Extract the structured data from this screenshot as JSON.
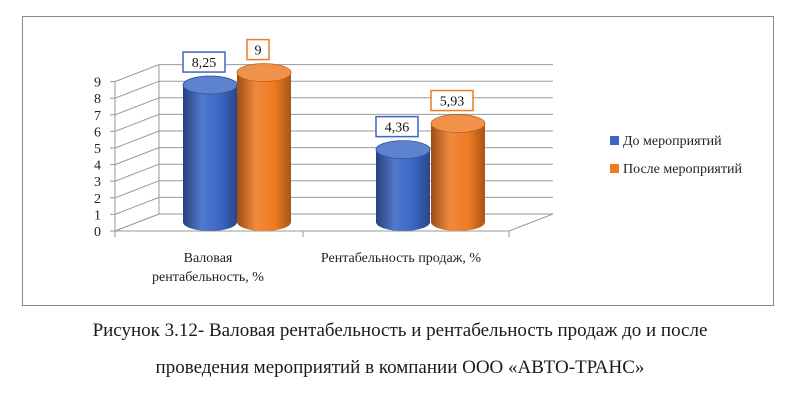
{
  "chart_data": {
    "type": "bar",
    "style": "3d-cylinder",
    "categories": [
      "Валовая рентабельность, %",
      "Рентабельность продаж, %"
    ],
    "category_lines": [
      [
        "Валовая",
        "рентабельность, %"
      ],
      [
        "Рентабельность продаж, %"
      ]
    ],
    "series": [
      {
        "name": "До мероприятий",
        "color": "#3a66c4",
        "values": [
          8.25,
          4.36
        ],
        "labels": [
          "8,25",
          "4,36"
        ]
      },
      {
        "name": "После мероприятий",
        "color": "#ee7a22",
        "values": [
          9,
          5.93
        ],
        "labels": [
          "9",
          "5,93"
        ]
      }
    ],
    "y_ticks": [
      "0",
      "1",
      "2",
      "3",
      "4",
      "5",
      "6",
      "7",
      "8",
      "9"
    ],
    "ylim": [
      0,
      9
    ],
    "grid": true,
    "legend_position": "right"
  },
  "caption": {
    "line1": "Рисунок 3.12- Валовая рентабельность и рентабельность продаж до и после",
    "line2": "проведения мероприятий в компании ООО «АВТО-ТРАНС»"
  }
}
